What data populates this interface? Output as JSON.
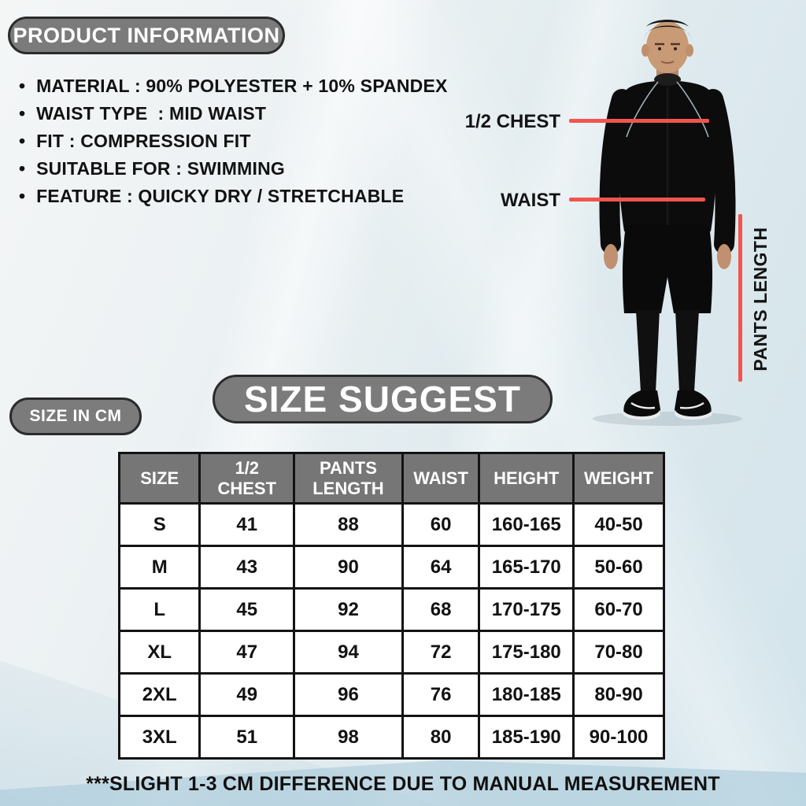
{
  "colors": {
    "badge_bg": "#7b7b7b",
    "badge_border": "#2b2b2b",
    "accent_red": "#f2544d",
    "table_header_bg": "#767676",
    "background_tint": "#d2e4eb"
  },
  "product_info": {
    "badge_label": "PRODUCT INFORMATION",
    "bullets": [
      "MATERIAL : 90% POLYESTER + 10% SPANDEX",
      "WAIST TYPE  : MID WAIST",
      "FIT : COMPRESSION FIT",
      "SUITABLE FOR : SWIMMING",
      "FEATURE : QUICKY DRY / STRETCHABLE"
    ],
    "bullet_glyph": "•"
  },
  "model_diagram": {
    "half_chest_label": "1/2 CHEST",
    "waist_label": "WAIST",
    "pants_length_label": "PANTS LENGTH"
  },
  "size_section": {
    "unit_badge_label": "SIZE IN CM",
    "title_badge_label": "SIZE SUGGEST"
  },
  "size_table": {
    "headers": [
      "SIZE",
      "1/2 CHEST",
      "PANTS LENGTH",
      "WAIST",
      "HEIGHT",
      "WEIGHT"
    ],
    "rows": [
      [
        "S",
        "41",
        "88",
        "60",
        "160-165",
        "40-50"
      ],
      [
        "M",
        "43",
        "90",
        "64",
        "165-170",
        "50-60"
      ],
      [
        "L",
        "45",
        "92",
        "68",
        "170-175",
        "60-70"
      ],
      [
        "XL",
        "47",
        "94",
        "72",
        "175-180",
        "70-80"
      ],
      [
        "2XL",
        "49",
        "96",
        "76",
        "180-185",
        "80-90"
      ],
      [
        "3XL",
        "51",
        "98",
        "80",
        "185-190",
        "90-100"
      ]
    ]
  },
  "footnote": "***SLIGHT 1-3 CM DIFFERENCE DUE TO MANUAL MEASUREMENT"
}
